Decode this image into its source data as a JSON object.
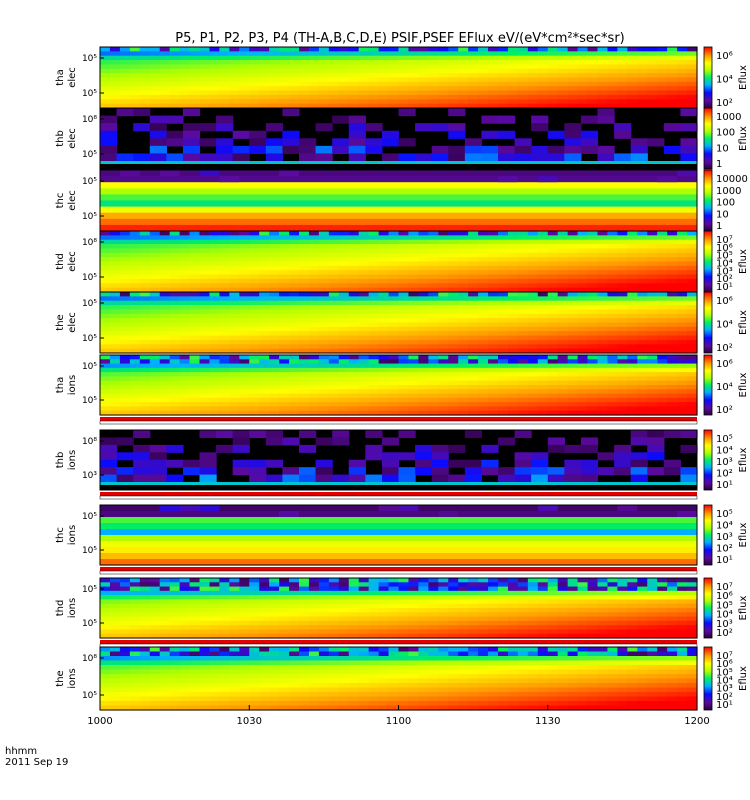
{
  "chart_data": {
    "type": "heatmap",
    "title": "P5, P1, P2, P3, P4 (TH-A,B,C,D,E) PSIF,PSEF EFlux eV/(eV*cm²*sec*sr)",
    "x_axis": {
      "label_line1": "hhmm",
      "label_line2": "2011 Sep 19",
      "ticks": [
        "1000",
        "1030",
        "1100",
        "1130",
        "1200"
      ],
      "range_hhmm": [
        "1000",
        "1200"
      ]
    },
    "colorscale": "rainbow (black/purple = low, red = high)",
    "panels": [
      {
        "label1": "tha",
        "label2": "elec",
        "yticks": [
          "10⁵",
          "10⁵"
        ],
        "cb_ticks": [
          "10⁶",
          "10⁴",
          "10²"
        ],
        "cb_label": "Eflux",
        "pattern": "smooth",
        "noisy_rows": 1,
        "flag": false
      },
      {
        "label1": "thb",
        "label2": "elec",
        "yticks": [
          "10⁸",
          "10⁵"
        ],
        "cb_ticks": [
          "1000",
          "100",
          "10",
          "1"
        ],
        "cb_label": "Eflux",
        "pattern": "sparse",
        "flag": false
      },
      {
        "label1": "thc",
        "label2": "elec",
        "yticks": [
          "10⁵",
          "10⁵"
        ],
        "cb_ticks": [
          "10000",
          "1000",
          "100",
          "10",
          "1"
        ],
        "cb_label": "",
        "pattern": "bands",
        "flag": false
      },
      {
        "label1": "thd",
        "label2": "elec",
        "yticks": [
          "10⁸",
          "10⁵"
        ],
        "cb_ticks": [
          "10⁷",
          "10⁶",
          "10⁵",
          "10⁴",
          "10³",
          "10²",
          "10¹"
        ],
        "cb_label": "Eflux",
        "pattern": "smooth",
        "noisy_rows": 1,
        "flag": false
      },
      {
        "label1": "the",
        "label2": "elec",
        "yticks": [
          "10⁵",
          "10⁵"
        ],
        "cb_ticks": [
          "10⁶",
          "10⁴",
          "10²"
        ],
        "cb_label": "Eflux",
        "pattern": "smooth",
        "noisy_rows": 1,
        "flag": true
      },
      {
        "label1": "tha",
        "label2": "ions",
        "yticks": [
          "10⁵",
          "10⁵"
        ],
        "cb_ticks": [
          "10⁶",
          "10⁴",
          "10²"
        ],
        "cb_label": "Eflux",
        "pattern": "smooth",
        "noisy_rows": 2,
        "flag": true
      },
      {
        "label1": "thb",
        "label2": "ions",
        "yticks": [
          "10⁸",
          "10³"
        ],
        "cb_ticks": [
          "10⁵",
          "10⁴",
          "10³",
          "10²",
          "10¹"
        ],
        "cb_label": "Eflux",
        "pattern": "sparse",
        "flag": true
      },
      {
        "label1": "thc",
        "label2": "ions",
        "yticks": [
          "10⁵",
          "10⁵"
        ],
        "cb_ticks": [
          "10⁵",
          "10⁴",
          "10³",
          "10²",
          "10¹"
        ],
        "cb_label": "Eflux",
        "pattern": "ion-bands",
        "flag": true
      },
      {
        "label1": "thd",
        "label2": "ions",
        "yticks": [
          "10⁵",
          "10⁵"
        ],
        "cb_ticks": [
          "10⁷",
          "10⁶",
          "10⁵",
          "10⁴",
          "10³",
          "10²"
        ],
        "cb_label": "Eflux",
        "pattern": "smooth",
        "noisy_rows": 3,
        "flag": true
      },
      {
        "label1": "the",
        "label2": "ions",
        "yticks": [
          "10⁸",
          "10⁵"
        ],
        "cb_ticks": [
          "10⁷",
          "10⁶",
          "10⁵",
          "10⁴",
          "10³",
          "10²",
          "10¹"
        ],
        "cb_label": "Eflux",
        "pattern": "smooth",
        "noisy_rows": 2,
        "flag": false
      }
    ]
  }
}
